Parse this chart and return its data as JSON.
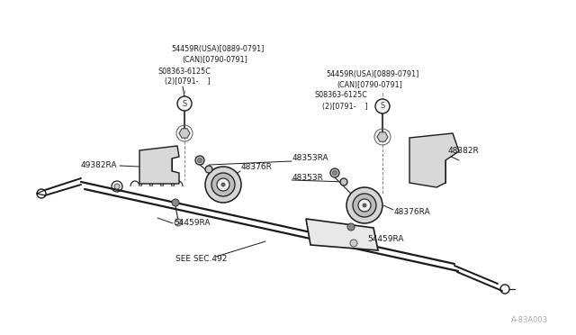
{
  "background_color": "#ffffff",
  "part_stroke": "#1a1a1a",
  "watermark": "A-83A003",
  "labels": {
    "top_left_label1": "54459R(USA)[0889-0791]",
    "top_left_label2": "(CAN)[0790-0791]",
    "top_left_bolt": "S08363-6125C",
    "top_left_bolt2": "(2)[0791-    ]",
    "top_right_label1": "54459R(USA)[0889-0791]",
    "top_right_label2": "(CAN)[0790-0791]",
    "top_right_bolt": "S08363-6125C",
    "top_right_bolt2": "(2)[0791-    ]",
    "part_49382RA": "49382RA",
    "part_48376R": "48376R",
    "part_48353RA": "48353RA",
    "part_48353R": "48353R",
    "part_48382R": "48382R",
    "part_54459RA_left": "54459RA",
    "part_54459RA_right": "54459RA",
    "part_48376RA": "48376RA",
    "see_sec": "SEE SEC.492"
  },
  "font_size_small": 5.8,
  "font_size_part": 6.5,
  "font_size_watermark": 6.0
}
